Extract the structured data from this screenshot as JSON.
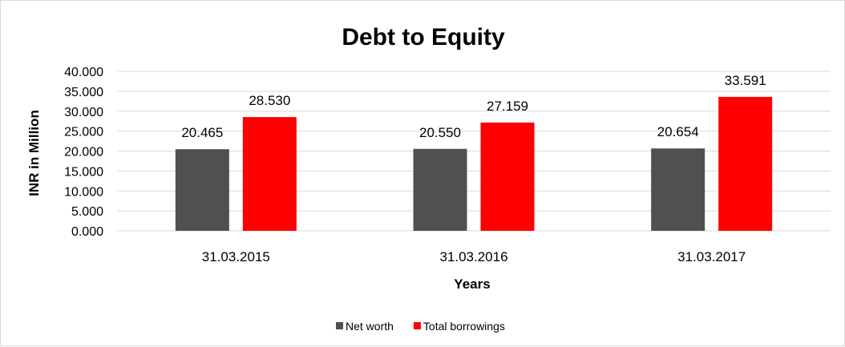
{
  "chart_data": {
    "type": "bar",
    "title": "Debt to Equity",
    "xlabel": "Years",
    "ylabel": "INR in Million",
    "ylim": [
      0,
      40
    ],
    "ytick_step": 5,
    "yticks": [
      "0.000",
      "5.000",
      "10.000",
      "15.000",
      "20.000",
      "25.000",
      "30.000",
      "35.000",
      "40.000"
    ],
    "categories": [
      "31.03.2015",
      "31.03.2016",
      "31.03.2017"
    ],
    "series": [
      {
        "name": "Net worth",
        "color": "#505050",
        "values": [
          20.465,
          20.55,
          20.654
        ],
        "labels": [
          "20.465",
          "20.550",
          "20.654"
        ]
      },
      {
        "name": "Total borrowings",
        "color": "#ff0000",
        "values": [
          28.53,
          27.159,
          33.591
        ],
        "labels": [
          "28.530",
          "27.159",
          "33.591"
        ]
      }
    ],
    "grid": true,
    "legend_position": "bottom"
  }
}
